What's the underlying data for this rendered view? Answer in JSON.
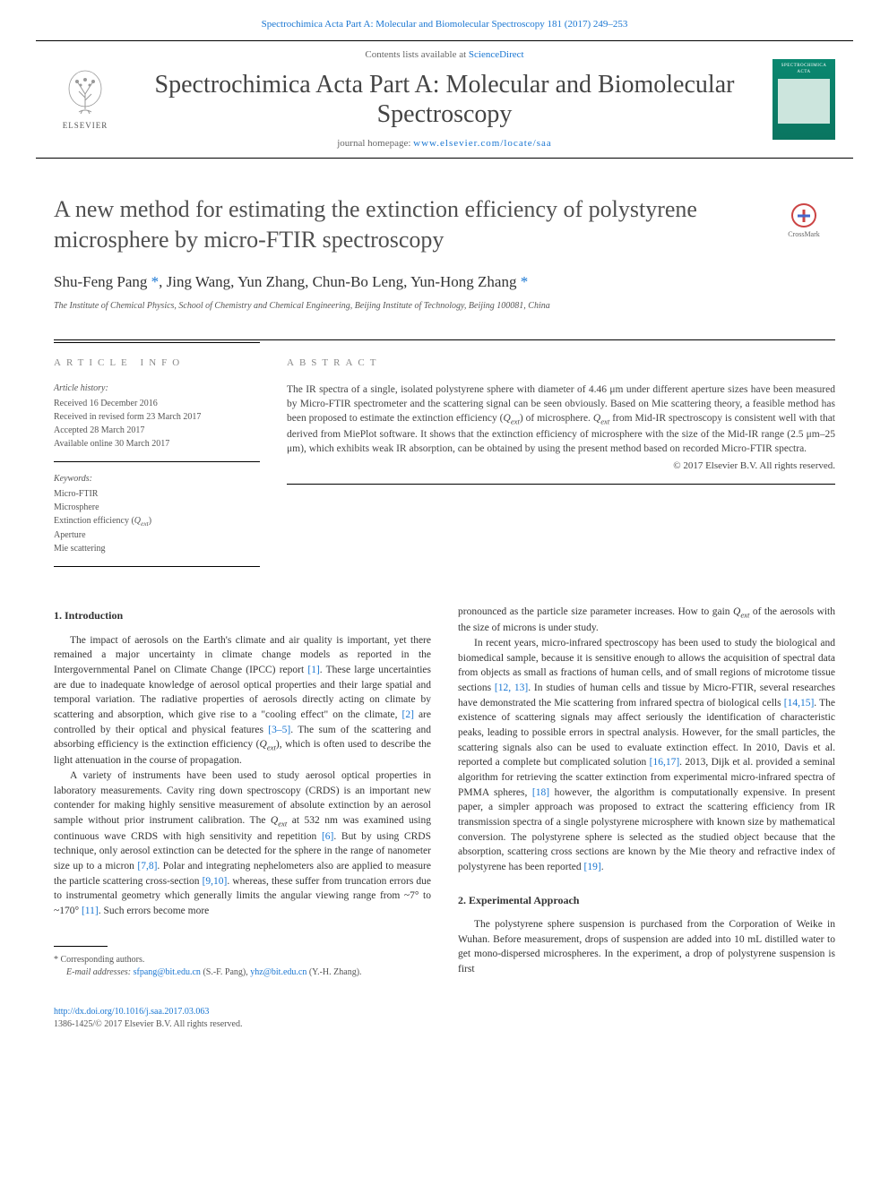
{
  "header": {
    "citation_text": "Spectrochimica Acta Part A: Molecular and Biomolecular Spectroscopy 181 (2017) 249–253",
    "contents_prefix": "Contents lists available at ",
    "contents_link": "ScienceDirect",
    "journal_name": "Spectrochimica Acta Part A: Molecular and Biomolecular Spectroscopy",
    "homepage_prefix": "journal homepage: ",
    "homepage_link": "www.elsevier.com/locate/saa",
    "elsevier": "ELSEVIER",
    "cover_title": "SPECTROCHIMICA ACTA",
    "crossmark": "CrossMark"
  },
  "article": {
    "title": "A new method for estimating the extinction efficiency of polystyrene microsphere by micro-FTIR spectroscopy",
    "authors_html": "Shu-Feng Pang <a href='#'>*</a>, Jing Wang, Yun Zhang, Chun-Bo Leng, Yun-Hong Zhang <a href='#'>*</a>",
    "affiliation": "The Institute of Chemical Physics, School of Chemistry and Chemical Engineering, Beijing Institute of Technology, Beijing 100081, China"
  },
  "info": {
    "label": "article info",
    "history_label": "Article history:",
    "history": [
      "Received 16 December 2016",
      "Received in revised form 23 March 2017",
      "Accepted 28 March 2017",
      "Available online 30 March 2017"
    ],
    "keywords_label": "Keywords:",
    "keywords": [
      "Micro-FTIR",
      "Microsphere",
      "Extinction efficiency (Qext)",
      "Aperture",
      "Mie scattering"
    ]
  },
  "abstract": {
    "label": "abstract",
    "text": "The IR spectra of a single, isolated polystyrene sphere with diameter of 4.46 μm under different aperture sizes have been measured by Micro-FTIR spectrometer and the scattering signal can be seen obviously. Based on Mie scattering theory, a feasible method has been proposed to estimate the extinction efficiency (Qext) of microsphere. Qext from Mid-IR spectroscopy is consistent well with that derived from MiePlot software. It shows that the extinction efficiency of microsphere with the size of the Mid-IR range (2.5 μm–25 μm), which exhibits weak IR absorption, can be obtained by using the present method based on recorded Micro-FTIR spectra.",
    "copyright": "© 2017 Elsevier B.V. All rights reserved."
  },
  "sections": {
    "intro_heading": "1. Introduction",
    "intro_p1_pre": "The impact of aerosols on the Earth's climate and air quality is important, yet there remained a major uncertainty in climate change models as reported in the Intergovernmental Panel on Climate Change (IPCC) report ",
    "ref1": "[1]",
    "intro_p1_mid1": ". These large uncertainties are due to inadequate knowledge of aerosol optical properties and their large spatial and temporal variation. The radiative properties of aerosols directly acting on climate by scattering and absorption, which give rise to a \"cooling effect\" on the climate, ",
    "ref2": "[2]",
    "intro_p1_mid2": " are controlled by their optical and physical features ",
    "ref3_5": "[3–5]",
    "intro_p1_end": ". The sum of the scattering and absorbing efficiency is the extinction efficiency (Qext), which is often used to describe the light attenuation in the course of propagation.",
    "intro_p2_pre": "A variety of instruments have been used to study aerosol optical properties in laboratory measurements. Cavity ring down spectroscopy (CRDS) is an important new contender for making highly sensitive measurement of absolute extinction by an aerosol sample without prior instrument calibration. The Qext at 532 nm was examined using continuous wave CRDS with high sensitivity and repetition ",
    "ref6": "[6]",
    "intro_p2_mid1": ". But by using CRDS technique, only aerosol extinction can be detected for the sphere in the range of nanometer size up to a micron ",
    "ref7_8": "[7,8]",
    "intro_p2_mid2": ". Polar and integrating nephelometers also are applied to measure the particle scattering cross-section ",
    "ref9_10": "[9,10]",
    "intro_p2_mid3": ". whereas, these suffer from truncation errors due to instrumental geometry which generally limits the angular viewing range from ~7° to ~170° ",
    "ref11": "[11]",
    "intro_p2_end": ". Such errors become more",
    "col2_p0": "pronounced as the particle size parameter increases. How to gain Qext of the aerosols with the size of microns is under study.",
    "col2_p1_pre": "In recent years, micro-infrared spectroscopy has been used to study the biological and biomedical sample, because it is sensitive enough to allows the acquisition of spectral data from objects as small as fractions of human cells, and of small regions of microtome tissue sections ",
    "ref12_13": "[12, 13]",
    "col2_p1_mid1": ". In studies of human cells and tissue by Micro-FTIR, several researches have demonstrated the Mie scattering from infrared spectra of biological cells ",
    "ref14_15": "[14,15]",
    "col2_p1_mid2": ". The existence of scattering signals may affect seriously the identification of characteristic peaks, leading to possible errors in spectral analysis. However, for the small particles, the scattering signals also can be used to evaluate extinction effect. In 2010, Davis et al. reported a complete but complicated solution ",
    "ref16_17": "[16,17]",
    "col2_p1_mid3": ". 2013, Dijk et al. provided a seminal algorithm for retrieving the scatter extinction from experimental micro-infrared spectra of PMMA spheres, ",
    "ref18": "[18]",
    "col2_p1_mid4": " however, the algorithm is computationally expensive. In present paper, a simpler approach was proposed to extract the scattering efficiency from IR transmission spectra of a single polystyrene microsphere with known size by mathematical conversion. The polystyrene sphere is selected as the studied object because that the absorption, scattering cross sections are known by the Mie theory and refractive index of polystyrene has been reported ",
    "ref19": "[19]",
    "col2_p1_end": ".",
    "exp_heading": "2. Experimental Approach",
    "exp_p1": "The polystyrene sphere suspension is purchased from the Corporation of Weike in Wuhan. Before measurement, drops of suspension are added into 10 mL distilled water to get mono-dispersed microspheres. In the experiment, a drop of polystyrene suspension is first"
  },
  "footnote": {
    "corr": "* Corresponding authors.",
    "email_label": "E-mail addresses: ",
    "email1": "sfpang@bit.edu.cn",
    "email1_name": " (S.-F. Pang), ",
    "email2": "yhz@bit.edu.cn",
    "email2_name": " (Y.-H. Zhang)."
  },
  "footer": {
    "doi": "http://dx.doi.org/10.1016/j.saa.2017.03.063",
    "issn": "1386-1425/© 2017 Elsevier B.V. All rights reserved."
  },
  "colors": {
    "link": "#1976d2",
    "text": "#333333",
    "gray": "#888888",
    "journal_green": "#0a8870"
  }
}
